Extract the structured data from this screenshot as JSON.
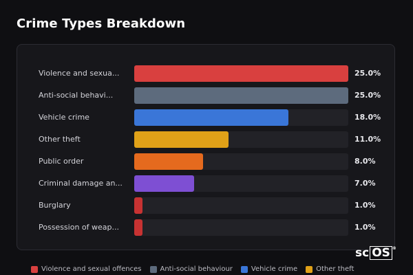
{
  "title": "Crime Types Breakdown",
  "chart_data": {
    "type": "bar",
    "orientation": "horizontal",
    "title": "Crime Types Breakdown",
    "categories": [
      "Violence and sexua...",
      "Anti-social behavi...",
      "Vehicle crime",
      "Other theft",
      "Public order",
      "Criminal damage an...",
      "Burglary",
      "Possession of weap..."
    ],
    "values": [
      25.0,
      25.0,
      18.0,
      11.0,
      8.0,
      7.0,
      1.0,
      1.0
    ],
    "value_labels": [
      "25.0%",
      "25.0%",
      "18.0%",
      "11.0%",
      "8.0%",
      "7.0%",
      "1.0%",
      "1.0%"
    ],
    "colors": [
      "#d9403f",
      "#5d6b7d",
      "#3a76d8",
      "#e0a118",
      "#e56a1e",
      "#7e4fd3",
      "#c73232",
      "#c73232"
    ],
    "xlim": [
      0,
      25
    ],
    "grid": false
  },
  "legend": [
    {
      "label": "Violence and sexual offences",
      "color": "#d9403f"
    },
    {
      "label": "Anti-social behaviour",
      "color": "#5d6b7d"
    },
    {
      "label": "Vehicle crime",
      "color": "#3a76d8"
    },
    {
      "label": "Other theft",
      "color": "#e0a118"
    }
  ],
  "watermark": {
    "text": "scOS"
  }
}
